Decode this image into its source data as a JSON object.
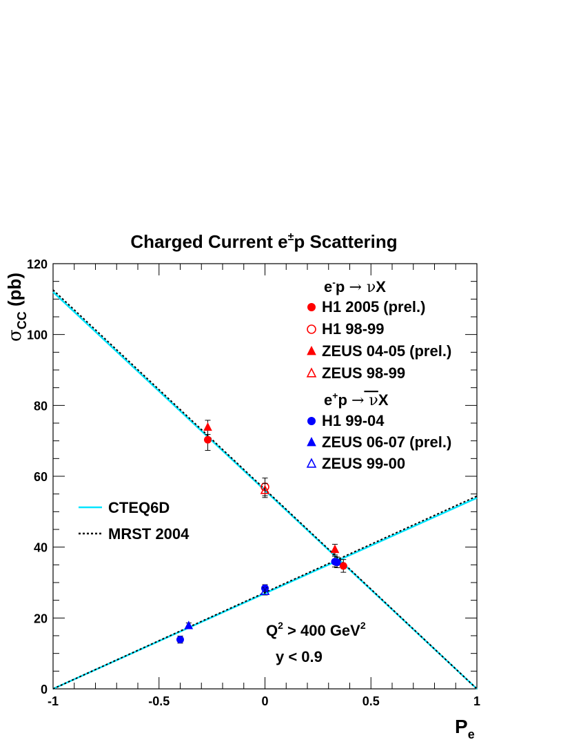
{
  "chart_data": {
    "type": "scatter",
    "title": {
      "main": "Charged Current e",
      "sup": "±",
      "rest": "p Scattering"
    },
    "xlabel": {
      "main": "P",
      "sub": "e"
    },
    "ylabel": {
      "sym": "σ",
      "sub": "CC",
      "rest": " (pb)"
    },
    "xlim": [
      -1,
      1
    ],
    "ylim": [
      0,
      120
    ],
    "x_ticks": [
      -1,
      -0.5,
      0,
      0.5,
      1
    ],
    "x_tick_labels": [
      "-1",
      "-0.5",
      "0",
      "0.5",
      "1"
    ],
    "y_ticks": [
      0,
      20,
      40,
      60,
      80,
      100,
      120
    ],
    "y_tick_labels": [
      "0",
      "20",
      "40",
      "60",
      "80",
      "100",
      "120"
    ],
    "grid": false,
    "legend": {
      "header1": {
        "a": "e",
        "asup": "-",
        "b": "p ",
        "arrow": "→",
        "nu": " ν",
        "x": "X"
      },
      "header2": {
        "a": "e",
        "asup": "+",
        "b": "p ",
        "arrow": "→",
        "nu": " ν",
        "x": "X"
      },
      "entries": [
        {
          "label": "H1 2005 (prel.)",
          "marker": "circle-filled",
          "color": "#ff0000"
        },
        {
          "label": "H1 98-99",
          "marker": "circle-open",
          "color": "#ff0000"
        },
        {
          "label": "ZEUS 04-05 (prel.)",
          "marker": "triangle-filled",
          "color": "#ff0000"
        },
        {
          "label": "ZEUS 98-99",
          "marker": "triangle-open",
          "color": "#ff0000"
        },
        {
          "label": "H1 99-04",
          "marker": "circle-filled",
          "color": "#0000ff"
        },
        {
          "label": "ZEUS 06-07 (prel.)",
          "marker": "triangle-filled",
          "color": "#0000ff"
        },
        {
          "label": "ZEUS 99-00",
          "marker": "triangle-open",
          "color": "#0000ff"
        }
      ],
      "theory": [
        {
          "label": "CTEQ6D",
          "style": "solid",
          "color": "#00e5ff"
        },
        {
          "label": "MRST 2004",
          "style": "dotted",
          "color": "#000000"
        }
      ]
    },
    "annotation": {
      "q": "Q",
      "qsup": "2",
      "mid": " > 400 GeV",
      "gsup": "2",
      "ycut": "y < 0.9"
    },
    "series": [
      {
        "name": "H1 2005 (prel.)",
        "color": "#ff0000",
        "marker": "circle-filled",
        "points": [
          {
            "x": -0.27,
            "y": 70.3,
            "err": 3.0
          },
          {
            "x": 0.37,
            "y": 34.7,
            "err": 1.8
          }
        ]
      },
      {
        "name": "H1 98-99",
        "color": "#ff0000",
        "marker": "circle-open",
        "points": [
          {
            "x": 0.0,
            "y": 57.0,
            "err": 2.5
          }
        ]
      },
      {
        "name": "ZEUS 04-05 (prel.)",
        "color": "#ff0000",
        "marker": "triangle-filled",
        "points": [
          {
            "x": -0.27,
            "y": 73.8,
            "err": 2.0
          },
          {
            "x": 0.33,
            "y": 39.3,
            "err": 1.5
          }
        ]
      },
      {
        "name": "ZEUS 98-99",
        "color": "#ff0000",
        "marker": "triangle-open",
        "points": [
          {
            "x": 0.0,
            "y": 56.0,
            "err": 2.0
          }
        ]
      },
      {
        "name": "H1 99-04",
        "color": "#0000ff",
        "marker": "circle-filled",
        "points": [
          {
            "x": -0.4,
            "y": 13.9,
            "err": 1.0
          },
          {
            "x": 0.0,
            "y": 28.4,
            "err": 1.0
          },
          {
            "x": 0.33,
            "y": 35.9,
            "err": 1.5
          },
          {
            "x": 0.34,
            "y": 35.7,
            "err": 1.5
          }
        ]
      },
      {
        "name": "ZEUS 06-07 (prel.)",
        "color": "#0000ff",
        "marker": "triangle-filled",
        "points": [
          {
            "x": -0.36,
            "y": 17.8,
            "err": 0.8
          }
        ]
      },
      {
        "name": "ZEUS 99-00",
        "color": "#0000ff",
        "marker": "triangle-open",
        "points": [
          {
            "x": 0.0,
            "y": 27.5,
            "err": 1.0
          }
        ]
      }
    ],
    "curves": [
      {
        "name": "CTEQ6D",
        "color": "#00e5ff",
        "style": "solid",
        "lines": [
          [
            [
              -1,
              112.0
            ],
            [
              1,
              0
            ]
          ],
          [
            [
              -1,
              0
            ],
            [
              1,
              53.9
            ]
          ]
        ]
      },
      {
        "name": "MRST 2004",
        "color": "#000000",
        "style": "dotted",
        "lines": [
          [
            [
              -1,
              112.6
            ],
            [
              1,
              0
            ]
          ],
          [
            [
              -1,
              0
            ],
            [
              1,
              54.4
            ]
          ]
        ]
      }
    ]
  }
}
